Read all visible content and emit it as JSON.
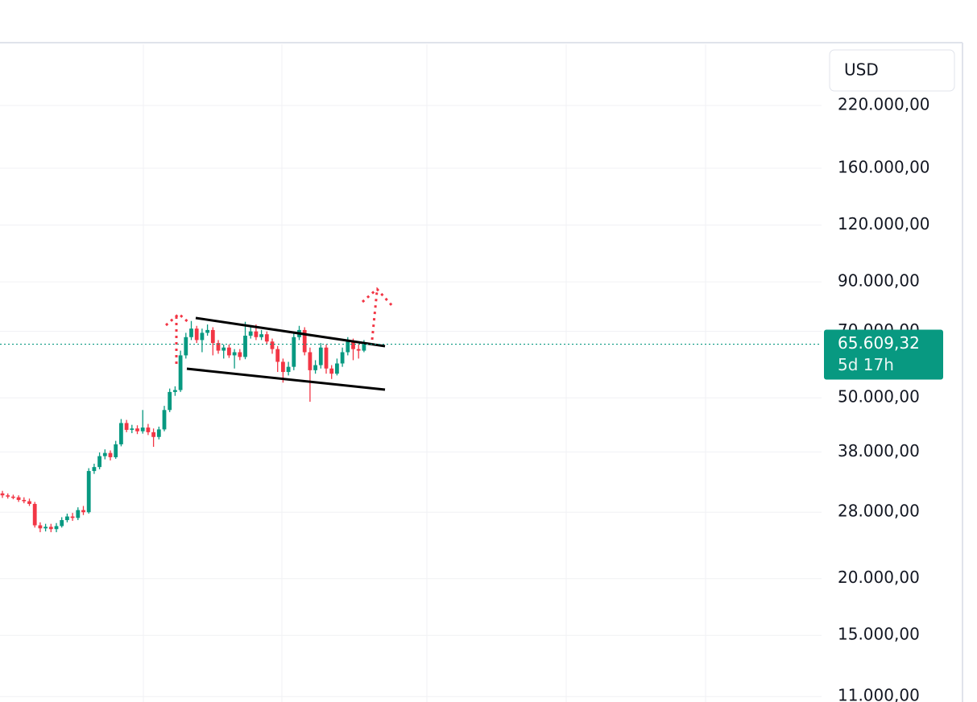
{
  "chart_data": {
    "type": "candlestick",
    "currency": "USD",
    "log_scale": true,
    "grid": true,
    "ylim": [
      10700,
      300000
    ],
    "yticks": [
      {
        "value": 220000,
        "label": "220.000,00"
      },
      {
        "value": 160000,
        "label": "160.000,00"
      },
      {
        "value": 120000,
        "label": "120.000,00"
      },
      {
        "value": 90000,
        "label": "90.000,00"
      },
      {
        "value": 70000,
        "label": "70.000,00"
      },
      {
        "value": 50000,
        "label": "50.000,00"
      },
      {
        "value": 38000,
        "label": "38.000,00"
      },
      {
        "value": 28000,
        "label": "28.000,00"
      },
      {
        "value": 20000,
        "label": "20.000,00"
      },
      {
        "value": 15000,
        "label": "15.000,00"
      },
      {
        "value": 11000,
        "label": "11.000,00"
      }
    ],
    "up_color": "#089981",
    "down_color": "#f23645",
    "open": [
      30800,
      30500,
      30300,
      30200,
      29800,
      29600,
      29200,
      26200,
      25800,
      26000,
      25700,
      26100,
      26900,
      27400,
      27200,
      28300,
      28000,
      34500,
      35200,
      37200,
      37800,
      37000,
      39500,
      44000,
      42500,
      42800,
      42200,
      43000,
      42000,
      41000,
      42600,
      47000,
      51500,
      52000,
      62000,
      68000,
      71000,
      67000,
      69500,
      70500,
      66000,
      63500,
      64500,
      62000,
      63000,
      61500,
      68500,
      70000,
      68000,
      69000,
      66500,
      64000,
      60000,
      57000,
      58500,
      68000,
      70500,
      63000,
      57500,
      59000,
      64500,
      58000,
      56500,
      59500,
      63000,
      66500,
      64000,
      63500
    ],
    "high": [
      31200,
      30800,
      30600,
      30500,
      30200,
      30000,
      29500,
      26600,
      26400,
      26400,
      26500,
      27300,
      27800,
      27900,
      28700,
      28900,
      35000,
      35800,
      37900,
      38500,
      38300,
      40200,
      44900,
      44700,
      43600,
      43500,
      47000,
      43800,
      42800,
      43200,
      48000,
      52400,
      53000,
      63500,
      69500,
      73800,
      72000,
      71000,
      72500,
      71500,
      67000,
      65500,
      65500,
      64000,
      64000,
      73500,
      71500,
      72500,
      70500,
      70000,
      67500,
      65000,
      61000,
      60000,
      69500,
      72000,
      71500,
      64500,
      60500,
      66000,
      65500,
      59000,
      61000,
      64500,
      68000,
      67500,
      65500,
      67000
    ],
    "low": [
      30100,
      30000,
      29900,
      29500,
      29300,
      28900,
      25900,
      25300,
      25400,
      25300,
      25300,
      25900,
      26600,
      26800,
      26900,
      27600,
      27800,
      34000,
      34800,
      36600,
      36400,
      36700,
      39100,
      42000,
      41800,
      41600,
      41700,
      41400,
      39000,
      40500,
      42200,
      46500,
      50500,
      51500,
      61000,
      67000,
      66000,
      63000,
      68500,
      62000,
      62500,
      61000,
      61200,
      58000,
      60500,
      60800,
      67500,
      67000,
      67000,
      65500,
      62500,
      57000,
      54000,
      56000,
      57500,
      67000,
      62000,
      49000,
      56500,
      58000,
      56500,
      55000,
      56000,
      58500,
      62000,
      60500,
      61000,
      63000
    ],
    "close": [
      30500,
      30300,
      30200,
      29800,
      29600,
      29200,
      26200,
      25800,
      26000,
      25700,
      26100,
      26900,
      27400,
      27200,
      28300,
      28000,
      34500,
      35200,
      37200,
      37800,
      37000,
      39500,
      44000,
      42500,
      42800,
      42200,
      43000,
      42000,
      41000,
      42600,
      47000,
      51500,
      52000,
      62000,
      68000,
      71000,
      67000,
      69500,
      70500,
      66000,
      63500,
      64500,
      62000,
      63000,
      61500,
      68500,
      70000,
      68000,
      69000,
      66500,
      64000,
      60000,
      57000,
      58500,
      68000,
      70500,
      63000,
      57500,
      59000,
      64500,
      58000,
      56500,
      59500,
      63000,
      66500,
      64000,
      63500,
      65609.32
    ],
    "last_price": {
      "value": 65609.32,
      "label": "65.609,32"
    },
    "countdown": "5d 17h"
  }
}
